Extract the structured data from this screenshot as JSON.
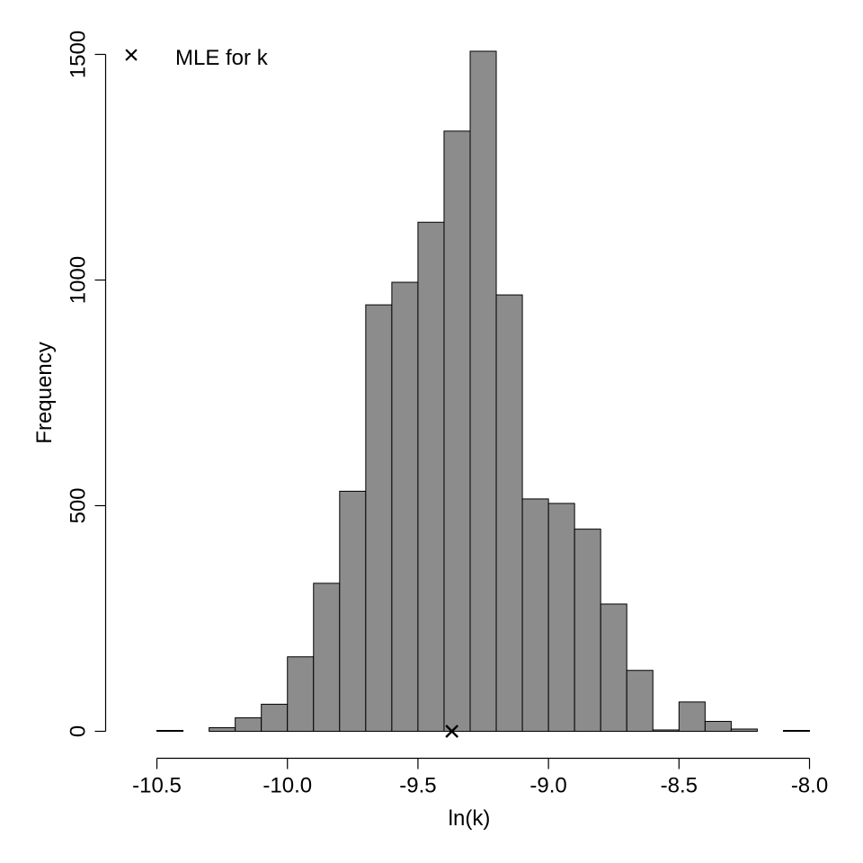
{
  "chart_data": {
    "type": "bar",
    "title": "",
    "xlabel": "ln(k)",
    "ylabel": "Frequency",
    "xlim": [
      -10.6,
      -8.0
    ],
    "ylim": [
      0,
      1500
    ],
    "bin_width": 0.1,
    "bin_edges_start": -10.6,
    "x_ticks": [
      -10.5,
      -10.0,
      -9.5,
      -9.0,
      -8.5,
      -8.0
    ],
    "x_tick_labels": [
      "-10.5",
      "-10.0",
      "-9.5",
      "-9.0",
      "-8.5",
      "-8.0"
    ],
    "y_ticks": [
      0,
      500,
      1000,
      1500
    ],
    "y_tick_labels": [
      "0",
      "500",
      "1000",
      "1500"
    ],
    "values": [
      0,
      2,
      0,
      8,
      30,
      60,
      165,
      328,
      532,
      945,
      995,
      1128,
      1330,
      1507,
      967,
      515,
      505,
      448,
      282,
      135,
      3,
      65,
      22,
      5,
      0,
      2
    ],
    "bar_color": "#8c8c8c",
    "mle": {
      "x": -9.37,
      "y": 0
    },
    "legend": {
      "symbol": "×",
      "label": "MLE for k",
      "position": "top-left"
    }
  }
}
